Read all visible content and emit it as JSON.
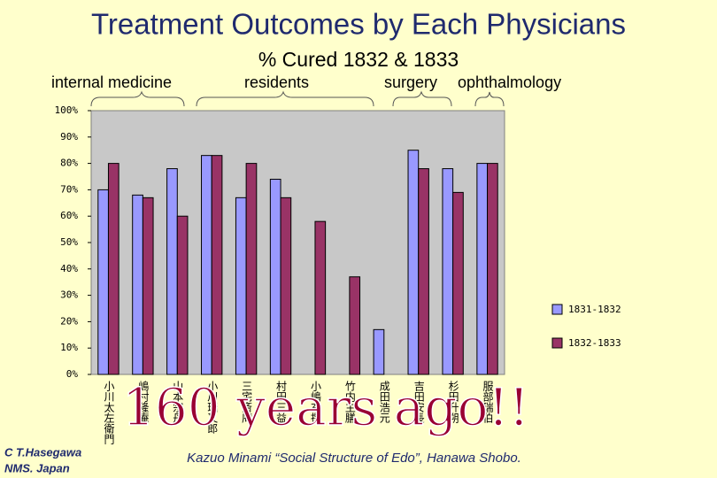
{
  "chart_data": {
    "type": "bar",
    "title": "Treatment Outcomes by Each Physicians",
    "subtitle": "% Cured 1832  & 1833",
    "group_labels": [
      "internal medicine",
      "residents",
      "surgery",
      "ophthalmology"
    ],
    "overlay_text": "160 years ago!!",
    "source": "Kazuo Minami “Social Structure of Edo”, Hanawa Shobo.",
    "credit": [
      "C T.Hasegawa",
      "NMS. Japan"
    ],
    "categories": [
      "小川太左衛門",
      "嶋村隆庵",
      "山本宗丹",
      "小川瑞又郎",
      "三宅斎庵",
      "村田三益",
      "小嶋玄撰",
      "竹内主膳",
      "成田浩元",
      "吉田安長",
      "杉田升朔",
      "服部瑞伯"
    ],
    "series": [
      {
        "name": "1831-1832",
        "color": "#9999ff",
        "values": [
          70,
          68,
          78,
          83,
          67,
          74,
          null,
          null,
          17,
          85,
          78,
          80
        ]
      },
      {
        "name": "1832-1833",
        "color": "#993366",
        "values": [
          80,
          67,
          60,
          83,
          80,
          67,
          58,
          37,
          null,
          78,
          69,
          80
        ]
      }
    ],
    "ylim": [
      0,
      100
    ],
    "yticks": [
      {
        "value": 0,
        "label": "0%"
      },
      {
        "value": 10,
        "label": "10%"
      },
      {
        "value": 20,
        "label": "20%"
      },
      {
        "value": 30,
        "label": "30%"
      },
      {
        "value": 40,
        "label": "40%"
      },
      {
        "value": 50,
        "label": "50%"
      },
      {
        "value": 60,
        "label": "60%"
      },
      {
        "value": 70,
        "label": "70%"
      },
      {
        "value": 80,
        "label": "80%"
      },
      {
        "value": 90,
        "label": "90%"
      },
      {
        "value": 100,
        "label": "100%"
      }
    ],
    "legend": "right"
  }
}
